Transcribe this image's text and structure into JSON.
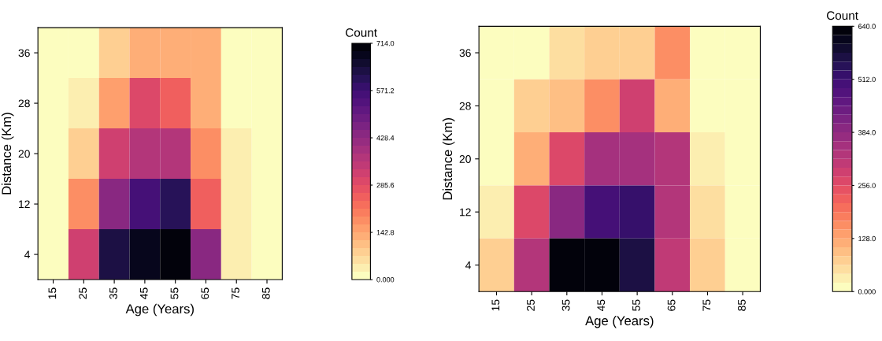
{
  "chart_data": [
    {
      "type": "heatmap",
      "xlabel": "Age (Years)",
      "ylabel": "Distance (Km)",
      "clabel": "Count",
      "categories": [
        "15",
        "25",
        "35",
        "45",
        "55",
        "65",
        "75",
        "85"
      ],
      "y_categories": [
        "36",
        "28",
        "20",
        "12",
        "4"
      ],
      "cells": [
        [
          0,
          0,
          90,
          120,
          120,
          120,
          0,
          0
        ],
        [
          0,
          30,
          150,
          290,
          250,
          120,
          0,
          0
        ],
        [
          0,
          80,
          310,
          380,
          380,
          190,
          35,
          0
        ],
        [
          0,
          170,
          430,
          570,
          610,
          240,
          35,
          0
        ],
        [
          0,
          330,
          620,
          680,
          714,
          430,
          35,
          0
        ]
      ],
      "clim": [
        0,
        714
      ],
      "cticks": [
        {
          "value": 0,
          "label": "0.000"
        },
        {
          "value": 142.8,
          "label": "142.8"
        },
        {
          "value": 285.6,
          "label": "285.6"
        },
        {
          "value": 428.4,
          "label": "428.4"
        },
        {
          "value": 571.2,
          "label": "571.2"
        },
        {
          "value": 714,
          "label": "714.0"
        }
      ]
    },
    {
      "type": "heatmap",
      "xlabel": "Age (Years)",
      "ylabel": "Distance (Km)",
      "clabel": "Count",
      "categories": [
        "15",
        "25",
        "35",
        "45",
        "55",
        "65",
        "75",
        "85"
      ],
      "y_categories": [
        "36",
        "28",
        "20",
        "12",
        "4"
      ],
      "cells": [
        [
          0,
          0,
          50,
          70,
          70,
          150,
          0,
          0
        ],
        [
          0,
          70,
          100,
          170,
          290,
          120,
          0,
          0
        ],
        [
          0,
          120,
          270,
          350,
          350,
          320,
          25,
          0
        ],
        [
          25,
          270,
          400,
          500,
          520,
          330,
          50,
          0
        ],
        [
          70,
          340,
          630,
          640,
          560,
          310,
          70,
          0
        ]
      ],
      "clim": [
        0,
        640
      ],
      "cticks": [
        {
          "value": 0,
          "label": "0.000"
        },
        {
          "value": 128,
          "label": "128.0"
        },
        {
          "value": 256,
          "label": "256.0"
        },
        {
          "value": 384,
          "label": "384.0"
        },
        {
          "value": 512,
          "label": "512.0"
        },
        {
          "value": 640,
          "label": "640.0"
        }
      ]
    }
  ]
}
